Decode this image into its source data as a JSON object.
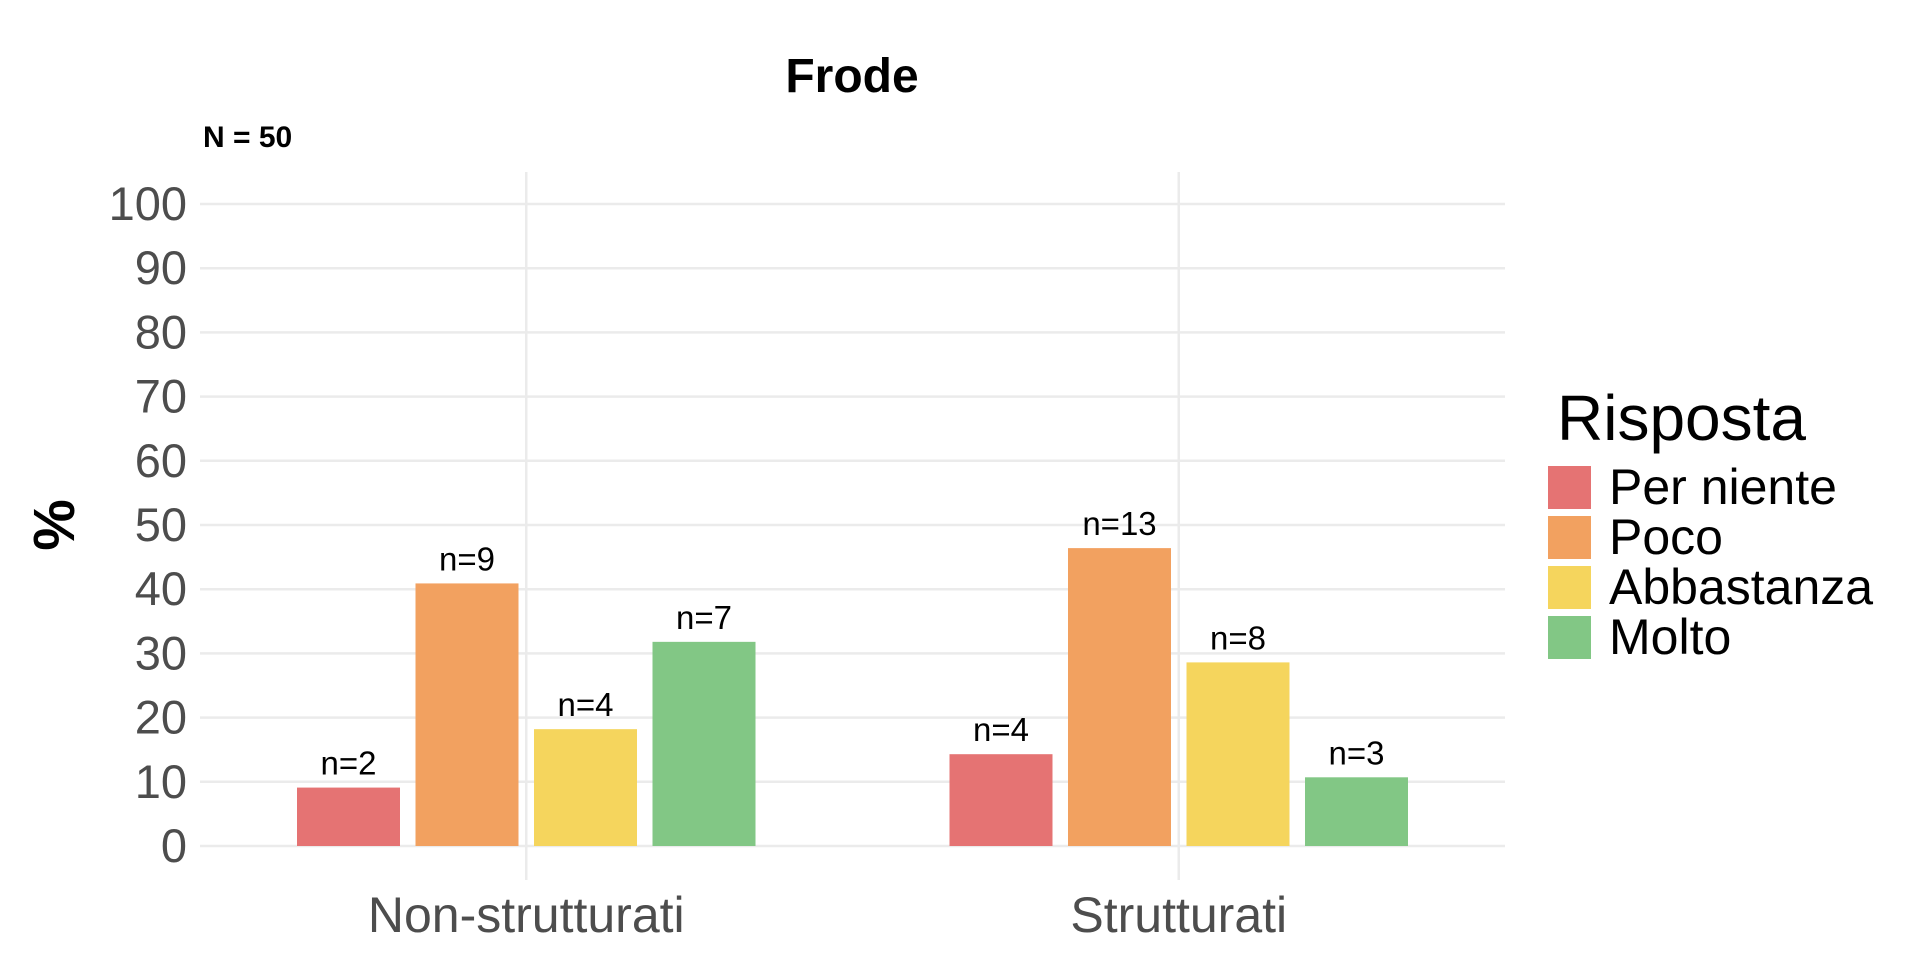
{
  "chart_data": {
    "type": "bar",
    "title": "Frode",
    "subtitle": "N = 50",
    "xlabel": "",
    "ylabel": "%",
    "ylim": [
      0,
      100
    ],
    "yticks": [
      "0",
      "10",
      "20",
      "30",
      "40",
      "50",
      "60",
      "70",
      "80",
      "90",
      "100"
    ],
    "categories": [
      "Non-strutturati",
      "Strutturati"
    ],
    "legend": {
      "title": "Risposta",
      "position": "right"
    },
    "grid": true,
    "series": [
      {
        "name": "Per niente",
        "color": "#E57373",
        "values": [
          9.1,
          14.3
        ],
        "labels": [
          "n=2",
          "n=4"
        ]
      },
      {
        "name": "Poco",
        "color": "#F2A160",
        "values": [
          40.9,
          46.4
        ],
        "labels": [
          "n=9",
          "n=13"
        ]
      },
      {
        "name": "Abbastanza",
        "color": "#F5D55D",
        "values": [
          18.2,
          28.6
        ],
        "labels": [
          "n=4",
          "n=8"
        ]
      },
      {
        "name": "Molto",
        "color": "#82C785",
        "values": [
          31.8,
          10.7
        ],
        "labels": [
          "n=7",
          "n=3"
        ]
      }
    ]
  }
}
